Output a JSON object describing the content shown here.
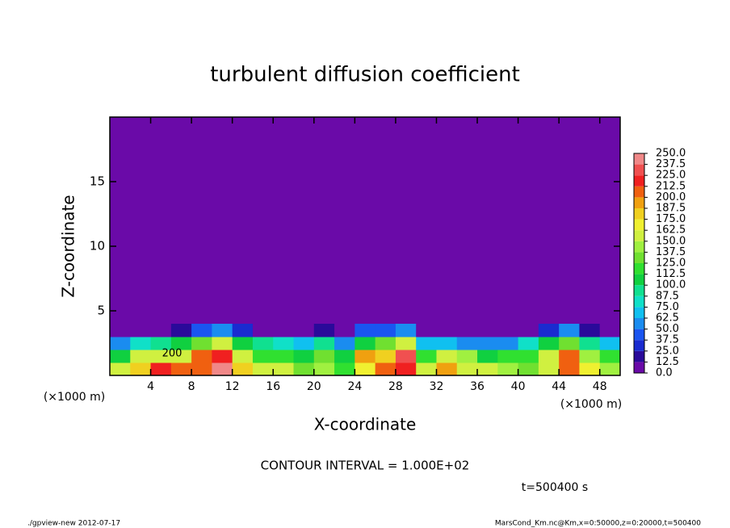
{
  "chart_data": {
    "type": "heatmap",
    "title": "turbulent diffusion coefficient",
    "x_label": "X-coordinate",
    "y_label": "Z-coordinate",
    "x_unit": "(×1000 m)",
    "x_unit_right": "(×1000 m)",
    "contour_interval": "CONTOUR INTERVAL = 1.000E+02",
    "time_label": "t=500400 s",
    "footer_left": "./gpview-new  2012-07-17",
    "footer_right": "MarsCond_Km.nc@Km,x=0:50000,z=0:20000,t=500400",
    "contour_labels": [
      200
    ],
    "xlim": [
      0,
      50
    ],
    "ylim": [
      0,
      20
    ],
    "xticks": [
      4,
      8,
      12,
      16,
      20,
      24,
      28,
      32,
      36,
      40,
      44,
      48
    ],
    "yticks": [
      5,
      10,
      15
    ],
    "x_edges": [
      0,
      2,
      4,
      6,
      8,
      10,
      12,
      14,
      16,
      18,
      20,
      22,
      24,
      26,
      28,
      30,
      32,
      34,
      36,
      38,
      40,
      42,
      44,
      46,
      48,
      50
    ],
    "z_edges": [
      0,
      1,
      2,
      3,
      4
    ],
    "field": [
      [
        150,
        180,
        220,
        200,
        210,
        240,
        180,
        150,
        160,
        130,
        140,
        120,
        170,
        200,
        220,
        150,
        190,
        160,
        150,
        140,
        130,
        160,
        200,
        170,
        140
      ],
      [
        100,
        150,
        160,
        150,
        200,
        220,
        150,
        120,
        120,
        110,
        130,
        100,
        190,
        180,
        230,
        120,
        160,
        140,
        110,
        120,
        120,
        150,
        200,
        140,
        120
      ],
      [
        60,
        80,
        90,
        100,
        130,
        150,
        110,
        90,
        80,
        70,
        90,
        60,
        110,
        130,
        150,
        70,
        70,
        60,
        50,
        60,
        80,
        110,
        130,
        90,
        70
      ],
      [
        5,
        10,
        10,
        15,
        40,
        50,
        30,
        10,
        10,
        5,
        20,
        10,
        40,
        40,
        60,
        10,
        10,
        5,
        5,
        10,
        10,
        30,
        50,
        20,
        10
      ]
    ],
    "colorbar": {
      "ticks": [
        {
          "value": 0,
          "label": "0.0"
        },
        {
          "value": 12.5,
          "label": "12.5"
        },
        {
          "value": 25,
          "label": "25.0"
        },
        {
          "value": 37.5,
          "label": "37.5"
        },
        {
          "value": 50,
          "label": "50.0"
        },
        {
          "value": 62.5,
          "label": "62.5"
        },
        {
          "value": 75,
          "label": "75.0"
        },
        {
          "value": 87.5,
          "label": "87.5"
        },
        {
          "value": 100,
          "label": "100.0"
        },
        {
          "value": 112.5,
          "label": "112.5"
        },
        {
          "value": 125,
          "label": "125.0"
        },
        {
          "value": 137.5,
          "label": "137.5"
        },
        {
          "value": 150,
          "label": "150.0"
        },
        {
          "value": 162.5,
          "label": "162.5"
        },
        {
          "value": 175,
          "label": "175.0"
        },
        {
          "value": 187.5,
          "label": "187.5"
        },
        {
          "value": 200,
          "label": "200.0"
        },
        {
          "value": 212.5,
          "label": "212.5"
        },
        {
          "value": 225,
          "label": "225.0"
        },
        {
          "value": 237.5,
          "label": "237.5"
        },
        {
          "value": 250,
          "label": "250.0"
        }
      ],
      "colors": [
        "#6a0aa8",
        "#2a0a9a",
        "#1a2bd0",
        "#1a55f0",
        "#1a8cf0",
        "#10c0f0",
        "#10e0c8",
        "#10e090",
        "#10d040",
        "#30e030",
        "#70e030",
        "#a0f040",
        "#d0f040",
        "#f0f030",
        "#f0d020",
        "#f0a010",
        "#f06010",
        "#f02020",
        "#f05050",
        "#f08888"
      ]
    }
  }
}
